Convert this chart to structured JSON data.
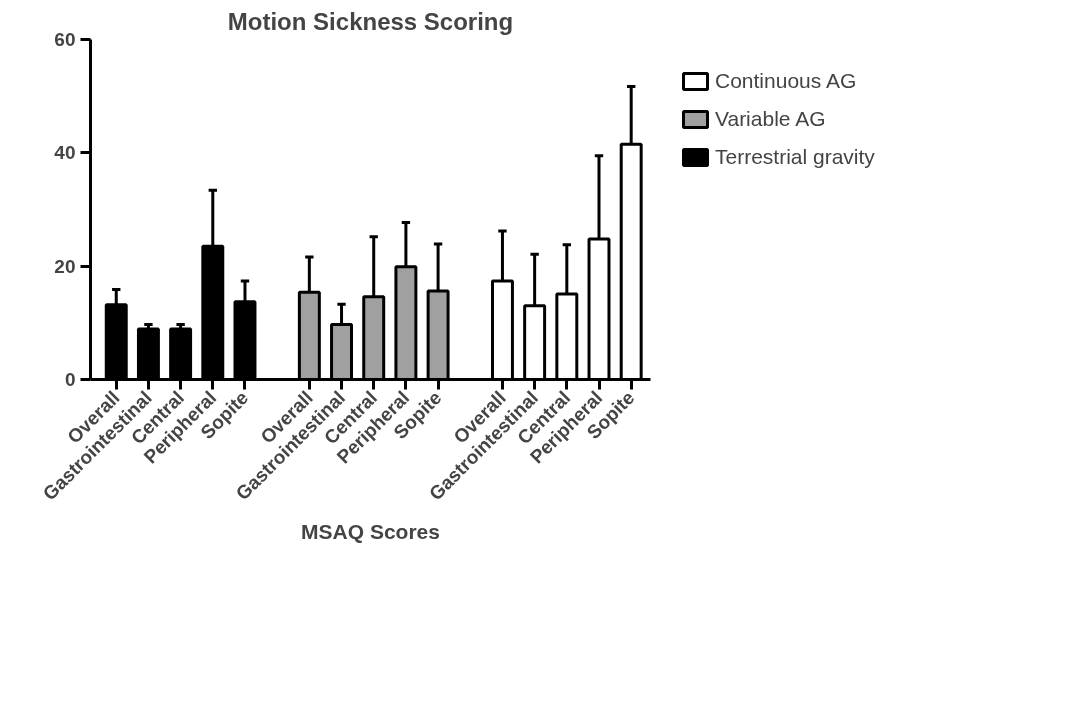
{
  "chart_data": {
    "type": "bar",
    "title": "Motion Sickness Scoring",
    "xlabel": "MSAQ Scores",
    "categories": [
      "Overall",
      "Gastrointestinal",
      "Central",
      "Peripheral",
      "Sopite",
      null,
      "Overall",
      "Gastrointestinal",
      "Central",
      "Peripheral",
      "Sopite",
      null,
      "Overall",
      "Gastrointestinal",
      "Central",
      "Peripheral",
      "Sopite"
    ],
    "series": [
      {
        "name": "Continuous AG",
        "color": "#ffffff",
        "values": [
          null,
          null,
          null,
          null,
          null,
          null,
          null,
          null,
          null,
          null,
          null,
          null,
          17.4,
          13.0,
          15.1,
          24.8,
          41.5
        ],
        "errors": [
          null,
          null,
          null,
          null,
          null,
          null,
          null,
          null,
          null,
          null,
          null,
          null,
          [
            17.4,
            26.2
          ],
          [
            13.0,
            22.1
          ],
          [
            15.1,
            23.8
          ],
          [
            24.8,
            39.5
          ],
          [
            41.5,
            51.7
          ]
        ]
      },
      {
        "name": "Variable AG",
        "color": "#a0a0a0",
        "values": [
          null,
          null,
          null,
          null,
          null,
          null,
          15.4,
          9.7,
          14.6,
          19.9,
          15.6,
          null,
          null,
          null,
          null,
          null,
          null
        ],
        "errors": [
          null,
          null,
          null,
          null,
          null,
          null,
          [
            15.4,
            21.6
          ],
          [
            9.7,
            13.3
          ],
          [
            14.6,
            25.2
          ],
          [
            19.9,
            27.7
          ],
          [
            15.6,
            23.9
          ],
          null,
          null,
          null,
          null,
          null,
          null
        ]
      },
      {
        "name": "Terrestrial gravity",
        "color": "#000000",
        "values": [
          13.2,
          8.9,
          8.9,
          23.5,
          13.7,
          null,
          null,
          null,
          null,
          null,
          null,
          null,
          null,
          null,
          null,
          null,
          null
        ],
        "errors": [
          [
            13.2,
            15.9
          ],
          [
            8.9,
            9.7
          ],
          [
            8.9,
            9.7
          ],
          [
            23.5,
            33.4
          ],
          [
            13.7,
            17.4
          ],
          null,
          null,
          null,
          null,
          null,
          null,
          null,
          null,
          null,
          null,
          null,
          null
        ]
      }
    ],
    "ylim": [
      0,
      60
    ],
    "yticks": [
      0,
      20,
      40,
      60
    ],
    "grid": false,
    "legend": "top right"
  }
}
